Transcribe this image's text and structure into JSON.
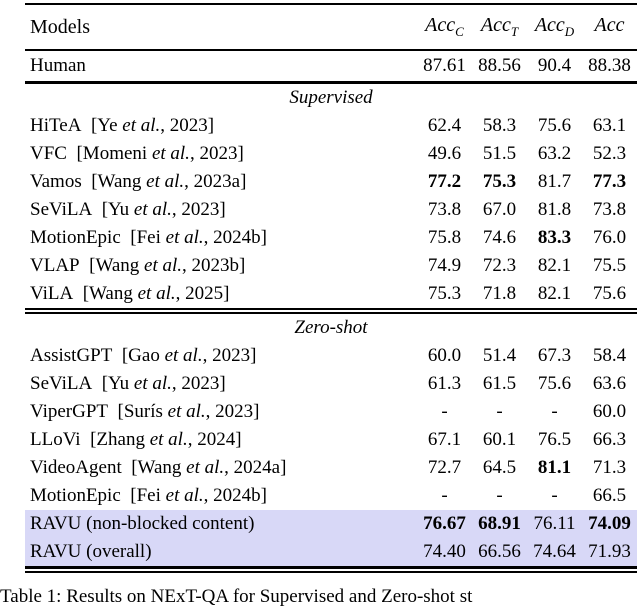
{
  "page": {
    "background": "#ffffff",
    "highlight_color": "#d8d8f7",
    "text_color": "#000000"
  },
  "table": {
    "header": {
      "models_label": "Models",
      "columns": [
        {
          "base": "Acc",
          "sub": "C"
        },
        {
          "base": "Acc",
          "sub": "T"
        },
        {
          "base": "Acc",
          "sub": "D"
        },
        {
          "base": "Acc",
          "sub": ""
        }
      ]
    },
    "human_row": {
      "label": "Human",
      "values": [
        {
          "t": "87.61"
        },
        {
          "t": "88.56"
        },
        {
          "t": "90.4"
        },
        {
          "t": "88.38"
        }
      ]
    },
    "et_al": "et al.",
    "sections": [
      {
        "title": "Supervised",
        "rows": [
          {
            "label": "HiTeA",
            "cite_author": "Ye",
            "cite_year": "2023",
            "values": [
              {
                "t": "62.4"
              },
              {
                "t": "58.3"
              },
              {
                "t": "75.6"
              },
              {
                "t": "63.1"
              }
            ]
          },
          {
            "label": "VFC",
            "cite_author": "Momeni",
            "cite_year": "2023",
            "values": [
              {
                "t": "49.6"
              },
              {
                "t": "51.5"
              },
              {
                "t": "63.2"
              },
              {
                "t": "52.3"
              }
            ]
          },
          {
            "label": "Vamos",
            "cite_author": "Wang",
            "cite_year": "2023a",
            "values": [
              {
                "t": "77.2",
                "b": true
              },
              {
                "t": "75.3",
                "b": true
              },
              {
                "t": "81.7"
              },
              {
                "t": "77.3",
                "b": true
              }
            ]
          },
          {
            "label": "SeViLA",
            "cite_author": "Yu",
            "cite_year": "2023",
            "values": [
              {
                "t": "73.8"
              },
              {
                "t": "67.0"
              },
              {
                "t": "81.8"
              },
              {
                "t": "73.8"
              }
            ]
          },
          {
            "label": "MotionEpic",
            "cite_author": "Fei",
            "cite_year": "2024b",
            "values": [
              {
                "t": "75.8"
              },
              {
                "t": "74.6"
              },
              {
                "t": "83.3",
                "b": true
              },
              {
                "t": "76.0"
              }
            ]
          },
          {
            "label": "VLAP",
            "cite_author": "Wang",
            "cite_year": "2023b",
            "values": [
              {
                "t": "74.9"
              },
              {
                "t": "72.3"
              },
              {
                "t": "82.1"
              },
              {
                "t": "75.5"
              }
            ]
          },
          {
            "label": "ViLA",
            "cite_author": "Wang",
            "cite_year": "2025",
            "values": [
              {
                "t": "75.3"
              },
              {
                "t": "71.8"
              },
              {
                "t": "82.1"
              },
              {
                "t": "75.6"
              }
            ]
          }
        ]
      },
      {
        "title": "Zero-shot",
        "rows": [
          {
            "label": "AssistGPT",
            "cite_author": "Gao",
            "cite_year": "2023",
            "values": [
              {
                "t": "60.0"
              },
              {
                "t": "51.4"
              },
              {
                "t": "67.3"
              },
              {
                "t": "58.4"
              }
            ]
          },
          {
            "label": "SeViLA",
            "cite_author": "Yu",
            "cite_year": "2023",
            "values": [
              {
                "t": "61.3"
              },
              {
                "t": "61.5"
              },
              {
                "t": "75.6"
              },
              {
                "t": "63.6"
              }
            ]
          },
          {
            "label": "ViperGPT",
            "cite_author": "Surís",
            "cite_year": "2023",
            "values": [
              {
                "t": "-"
              },
              {
                "t": "-"
              },
              {
                "t": "-"
              },
              {
                "t": "60.0"
              }
            ]
          },
          {
            "label": "LLoVi",
            "cite_author": "Zhang",
            "cite_year": "2024",
            "values": [
              {
                "t": "67.1"
              },
              {
                "t": "60.1"
              },
              {
                "t": "76.5"
              },
              {
                "t": "66.3"
              }
            ]
          },
          {
            "label": "VideoAgent",
            "cite_author": "Wang",
            "cite_year": "2024a",
            "values": [
              {
                "t": "72.7"
              },
              {
                "t": "64.5"
              },
              {
                "t": "81.1",
                "b": true
              },
              {
                "t": "71.3"
              }
            ]
          },
          {
            "label": "MotionEpic",
            "cite_author": "Fei",
            "cite_year": "2024b",
            "values": [
              {
                "t": "-"
              },
              {
                "t": "-"
              },
              {
                "t": "-"
              },
              {
                "t": "66.5"
              }
            ]
          },
          {
            "label": "RAVU (non-blocked content)",
            "highlight": true,
            "values": [
              {
                "t": "76.67",
                "b": true
              },
              {
                "t": "68.91",
                "b": true
              },
              {
                "t": "76.11"
              },
              {
                "t": "74.09",
                "b": true
              }
            ]
          },
          {
            "label": "RAVU (overall)",
            "highlight": true,
            "values": [
              {
                "t": "74.40"
              },
              {
                "t": "66.56"
              },
              {
                "t": "74.64"
              },
              {
                "t": "71.93"
              }
            ]
          }
        ]
      }
    ],
    "caption": "Table 1: Results on NExT-QA for Supervised and Zero-shot st"
  }
}
